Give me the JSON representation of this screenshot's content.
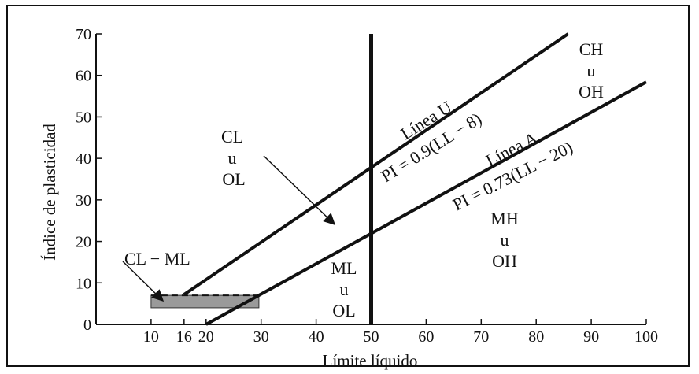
{
  "chart_data": {
    "type": "line",
    "xlabel": "Límite líquido",
    "ylabel": "Índice de plasticidad",
    "xlim": [
      0,
      100
    ],
    "ylim": [
      0,
      70
    ],
    "xticks": [
      10,
      16,
      20,
      30,
      40,
      50,
      60,
      70,
      80,
      90,
      100
    ],
    "yticks": [
      0,
      10,
      20,
      30,
      40,
      50,
      60,
      70
    ],
    "series": [
      {
        "name": "Línea U",
        "equation": "PI = 0.9(LL − 8)",
        "x": [
          16,
          85.8
        ],
        "y": [
          7.2,
          70
        ]
      },
      {
        "name": "Línea A",
        "equation": "PI = 0.73(LL − 20)",
        "x": [
          20,
          100
        ],
        "y": [
          0,
          58.4
        ]
      }
    ],
    "vertical_line": {
      "x": 50,
      "y": [
        0,
        70
      ]
    },
    "cl_ml_zone": {
      "x": [
        10,
        29.6
      ],
      "y": [
        4,
        7
      ]
    },
    "regions": [
      {
        "label": [
          "CL",
          "u",
          "OL"
        ]
      },
      {
        "label": [
          "CH",
          "u",
          "OH"
        ]
      },
      {
        "label": [
          "MH",
          "u",
          "OH"
        ]
      },
      {
        "label": [
          "ML",
          "u",
          "OL"
        ]
      },
      {
        "label": [
          "CL − ML"
        ]
      }
    ]
  }
}
